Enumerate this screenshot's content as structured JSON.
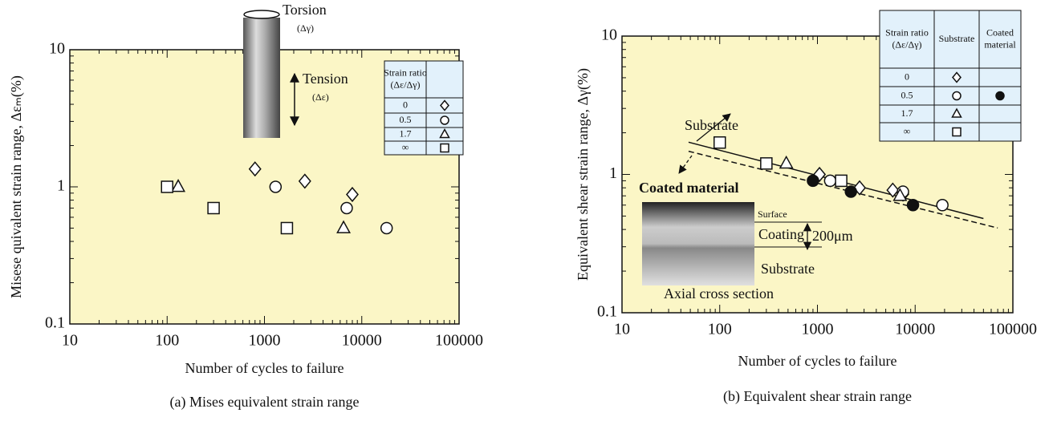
{
  "chart_data": [
    {
      "type": "scatter",
      "log": true,
      "ylabel": "Misese quivalent strain range, Δεₘ(%)",
      "xlabel": "Number of cycles to failure",
      "caption": "(a) Mises equivalent strain range",
      "xlim": [
        10,
        100000
      ],
      "ylim": [
        0.1,
        10
      ],
      "xticks": [
        10,
        100,
        1000,
        10000,
        100000
      ],
      "yticks": [
        0.1,
        1,
        10
      ],
      "background": "#fbf6c6",
      "legend_headers": [
        [
          "Strain ratio",
          "(Δε/Δγ)"
        ]
      ],
      "series": [
        {
          "name": "0",
          "marker": "diamond",
          "filled": false,
          "column": 1,
          "x": [
            800,
            2600,
            8000
          ],
          "values": [
            1.35,
            1.1,
            0.88
          ]
        },
        {
          "name": "0.5",
          "marker": "circle",
          "filled": false,
          "column": 1,
          "x": [
            1300,
            7000,
            18000
          ],
          "values": [
            1.0,
            0.7,
            0.5
          ]
        },
        {
          "name": "1.7",
          "marker": "triangle",
          "filled": false,
          "column": 1,
          "x": [
            130,
            6500
          ],
          "values": [
            1.0,
            0.5
          ]
        },
        {
          "name": "∞",
          "marker": "square",
          "filled": false,
          "column": 1,
          "x": [
            100,
            300,
            1700
          ],
          "values": [
            1.0,
            0.7,
            0.5
          ]
        }
      ],
      "annotations": [
        "Torsion",
        "(Δγ)",
        "Tension",
        "(Δε)"
      ]
    },
    {
      "type": "scatter",
      "log": true,
      "ylabel": "Equivalent shear strain range, Δγ(%)",
      "xlabel": "Number of cycles to failure",
      "caption": "(b) Equivalent shear strain range",
      "xlim": [
        10,
        100000
      ],
      "ylim": [
        0.1,
        10
      ],
      "xticks": [
        10,
        100,
        1000,
        10000,
        100000
      ],
      "yticks": [
        0.1,
        1,
        10
      ],
      "background": "#fbf6c6",
      "legend_headers": [
        [
          "Strain ratio",
          "(Δε/Δγ)"
        ],
        [
          "Substrate"
        ],
        [
          "Coated",
          "material"
        ]
      ],
      "series": [
        {
          "name": "0",
          "marker": "diamond",
          "filled": false,
          "column": 1,
          "x": [
            1050,
            2700,
            5900,
            7500
          ],
          "values": [
            1.0,
            0.8,
            0.77,
            0.72
          ]
        },
        {
          "name": "0.5",
          "marker": "circle",
          "filled": false,
          "column": 1,
          "x": [
            1350,
            7500,
            19000
          ],
          "values": [
            0.9,
            0.75,
            0.6
          ]
        },
        {
          "name": "1.7",
          "marker": "triangle",
          "filled": false,
          "column": 1,
          "x": [
            480,
            7000
          ],
          "values": [
            1.2,
            0.7
          ]
        },
        {
          "name": "∞",
          "marker": "square",
          "filled": false,
          "column": 1,
          "x": [
            100,
            300,
            1750
          ],
          "values": [
            1.7,
            1.2,
            0.9
          ]
        },
        {
          "name": "0.5",
          "marker": "circle",
          "filled": true,
          "column": 2,
          "x": [
            900,
            2200,
            9500
          ],
          "values": [
            0.9,
            0.75,
            0.6
          ]
        }
      ],
      "fit_lines": [
        {
          "dash": false,
          "x": [
            48,
            50000
          ],
          "values": [
            1.71,
            0.48
          ]
        },
        {
          "dash": true,
          "x": [
            48,
            70000
          ],
          "values": [
            1.47,
            0.41
          ]
        }
      ],
      "annotations": [
        "Substrate",
        "Coated material",
        "Surface",
        "Coating",
        "200μm",
        "Substrate",
        "Axial cross section"
      ]
    }
  ]
}
